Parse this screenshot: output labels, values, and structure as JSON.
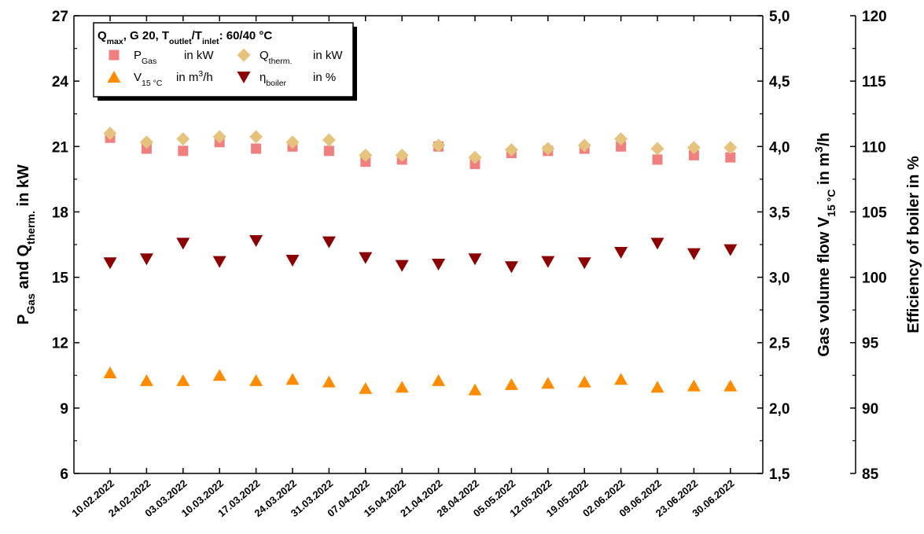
{
  "chart_data": {
    "type": "scatter",
    "categories": [
      "10.02.2022",
      "24.02.2022",
      "03.03.2022",
      "10.03.2022",
      "17.03.2022",
      "24.03.2022",
      "31.03.2022",
      "07.04.2022",
      "15.04.2022",
      "21.04.2022",
      "28.04.2022",
      "05.05.2022",
      "12.05.2022",
      "19.05.2022",
      "02.06.2022",
      "09.06.2022",
      "23.06.2022",
      "30.06.2022"
    ],
    "axes": {
      "left": {
        "label_parts": [
          {
            "text": "P",
            "shift": "none"
          },
          {
            "text": "Gas",
            "shift": "sub"
          },
          {
            "text": " and Q",
            "shift": "none"
          },
          {
            "text": "therm.",
            "shift": "sub"
          },
          {
            "text": " in kW",
            "shift": "none"
          }
        ],
        "ylim": [
          6,
          27
        ],
        "ticks": [
          "6",
          "9",
          "12",
          "15",
          "18",
          "21",
          "24",
          "27"
        ]
      },
      "right1": {
        "label_parts": [
          {
            "text": "Gas volume flow V",
            "shift": "none"
          },
          {
            "text": "15 °C",
            "shift": "sub"
          },
          {
            "text": " in m",
            "shift": "none"
          },
          {
            "text": "3",
            "shift": "super"
          },
          {
            "text": "/h",
            "shift": "none"
          }
        ],
        "ylim": [
          1.5,
          5.0
        ],
        "ticks": [
          "1,5",
          "2,0",
          "2,5",
          "3,0",
          "3,5",
          "4,0",
          "4,5",
          "5,0"
        ]
      },
      "right2": {
        "label_parts": [
          {
            "text": "Efficiency of boiler in %",
            "shift": "none"
          }
        ],
        "ylim": [
          85,
          120
        ],
        "ticks": [
          "85",
          "90",
          "95",
          "100",
          "105",
          "110",
          "115",
          "120"
        ]
      }
    },
    "legend": {
      "position": "top-left",
      "title_parts": [
        {
          "text": "Q",
          "shift": "none"
        },
        {
          "text": "max",
          "shift": "sub"
        },
        {
          "text": ", G 20, T",
          "shift": "none"
        },
        {
          "text": "outlet",
          "shift": "sub"
        },
        {
          "text": "/T",
          "shift": "none"
        },
        {
          "text": "inlet",
          "shift": "sub"
        },
        {
          "text": ": 60/40 °C",
          "shift": "none"
        }
      ]
    },
    "series": [
      {
        "key": "p_gas",
        "axis": "left",
        "marker": "square",
        "color": "#f08080",
        "name_parts": [
          {
            "text": "P",
            "shift": "none"
          },
          {
            "text": "Gas",
            "shift": "sub"
          }
        ],
        "unit_parts": [
          {
            "text": "in kW",
            "shift": "none"
          }
        ],
        "values": [
          21.4,
          20.9,
          20.8,
          21.2,
          20.9,
          21.0,
          20.8,
          20.3,
          20.4,
          21.0,
          20.2,
          20.7,
          20.8,
          20.9,
          21.0,
          20.4,
          20.6,
          20.5
        ]
      },
      {
        "key": "q_therm",
        "axis": "left",
        "marker": "diamond",
        "color": "#e6c37c",
        "name_parts": [
          {
            "text": "Q",
            "shift": "none"
          },
          {
            "text": "therm.",
            "shift": "sub"
          }
        ],
        "unit_parts": [
          {
            "text": "in kW",
            "shift": "none"
          }
        ],
        "values": [
          21.6,
          21.2,
          21.35,
          21.45,
          21.45,
          21.2,
          21.3,
          20.6,
          20.6,
          21.05,
          20.5,
          20.85,
          20.9,
          21.05,
          21.35,
          20.9,
          20.95,
          20.95
        ]
      },
      {
        "key": "v15",
        "axis": "right1",
        "marker": "triangle-up",
        "color": "#ff8c00",
        "name_parts": [
          {
            "text": "V",
            "shift": "none"
          },
          {
            "text": "15 °C",
            "shift": "sub"
          }
        ],
        "unit_parts": [
          {
            "text": "in m",
            "shift": "none"
          },
          {
            "text": "3",
            "shift": "super"
          },
          {
            "text": "/h",
            "shift": "none"
          }
        ],
        "values": [
          2.27,
          2.21,
          2.21,
          2.25,
          2.21,
          2.22,
          2.2,
          2.15,
          2.16,
          2.21,
          2.14,
          2.18,
          2.19,
          2.2,
          2.22,
          2.16,
          2.17,
          2.17
        ]
      },
      {
        "key": "eta",
        "axis": "right2",
        "marker": "triangle-down",
        "color": "#8b0000",
        "name_parts": [
          {
            "text": "η",
            "shift": "none"
          },
          {
            "text": "boiler",
            "shift": "sub"
          }
        ],
        "unit_parts": [
          {
            "text": "in %",
            "shift": "none"
          }
        ],
        "values": [
          101.1,
          101.4,
          102.6,
          101.2,
          102.8,
          101.3,
          102.7,
          101.5,
          100.9,
          101.0,
          101.4,
          100.8,
          101.2,
          101.1,
          101.9,
          102.6,
          101.8,
          102.1
        ]
      }
    ],
    "grid": false
  }
}
